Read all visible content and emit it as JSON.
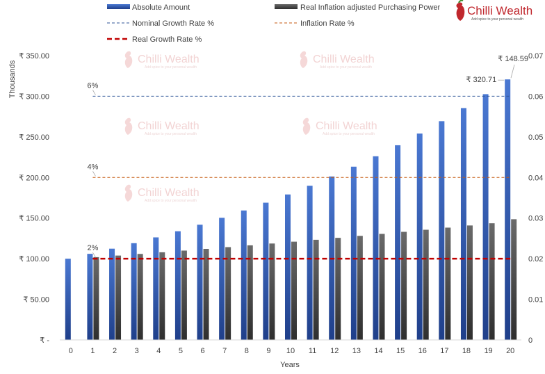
{
  "brand": {
    "name": "Chilli Wealth",
    "tagline": "Add spice to your personal wealth"
  },
  "chart_data": {
    "type": "bar",
    "xlabel": "Years",
    "ylabel": "Thousands",
    "ylim": [
      0,
      350
    ],
    "y2lim": [
      0,
      0.07
    ],
    "categories": [
      0,
      1,
      2,
      3,
      4,
      5,
      6,
      7,
      8,
      9,
      10,
      11,
      12,
      13,
      14,
      15,
      16,
      17,
      18,
      19,
      20
    ],
    "y_ticks": [
      "₹ -",
      "₹ 50.00",
      "₹ 100.00",
      "₹ 150.00",
      "₹ 200.00",
      "₹ 250.00",
      "₹ 300.00",
      "₹ 350.00"
    ],
    "y2_ticks": [
      "0",
      "0.01",
      "0.02",
      "0.03",
      "0.04",
      "0.05",
      "0.06",
      "0.07"
    ],
    "series": [
      {
        "name": "Absolute Amount",
        "color": "#3a66c4",
        "values": [
          100,
          106,
          112.36,
          119.1,
          126.25,
          133.82,
          141.85,
          150.36,
          159.38,
          168.95,
          179.08,
          189.83,
          201.22,
          213.29,
          226.09,
          239.66,
          254.04,
          269.28,
          285.43,
          302.56,
          320.71
        ]
      },
      {
        "name": "Real Inflation adjusted Purchasing Power",
        "color": "#555555",
        "values": [
          null,
          101.92,
          103.88,
          105.88,
          107.92,
          109.99,
          112.11,
          114.26,
          116.46,
          118.7,
          120.98,
          123.31,
          125.68,
          128.1,
          130.56,
          133.07,
          135.63,
          138.24,
          140.9,
          143.61,
          148.59
        ]
      }
    ],
    "lines": [
      {
        "name": "Nominal Growth Rate %",
        "value": 0.06,
        "label": "6%",
        "color": "#2f5597",
        "style": "dashed-thin"
      },
      {
        "name": "Inflation Rate %",
        "value": 0.04,
        "label": "4%",
        "color": "#c55a11",
        "style": "dashed-thin"
      },
      {
        "name": "Real Growth Rate %",
        "value": 0.02,
        "label": "2%",
        "color": "#c00000",
        "style": "dashed-thick"
      }
    ],
    "data_labels": {
      "absolute_last": "₹ 320.71",
      "real_last": "₹ 148.59"
    },
    "legend_position": "top",
    "grid": false
  }
}
